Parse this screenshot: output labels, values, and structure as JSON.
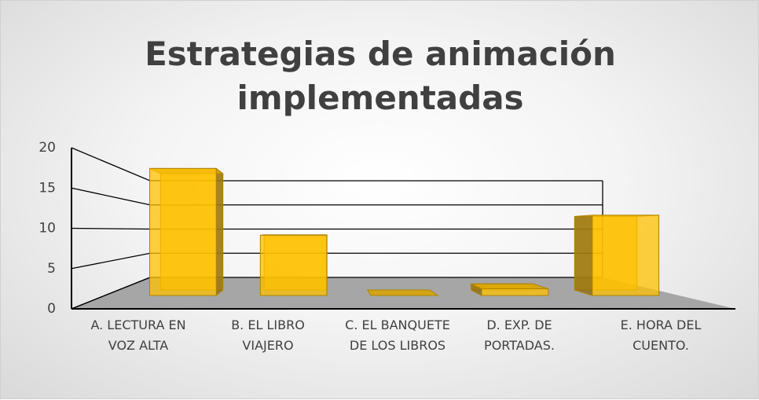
{
  "chart_data": {
    "type": "bar3d",
    "title": "Estrategias de animación implementadas",
    "categories": [
      "A. LECTURA EN VOZ ALTA",
      "B. EL LIBRO VIAJERO",
      "C. EL BANQUETE DE LOS LIBROS",
      "D. EXP. DE PORTADAS.",
      "E. HORA DEL CUENTO."
    ],
    "values": [
      19,
      9,
      0,
      1,
      12
    ],
    "color": "#ffc000",
    "ylim": [
      0,
      20
    ],
    "yticks": [
      0,
      5,
      10,
      15,
      20
    ],
    "grid": true
  }
}
